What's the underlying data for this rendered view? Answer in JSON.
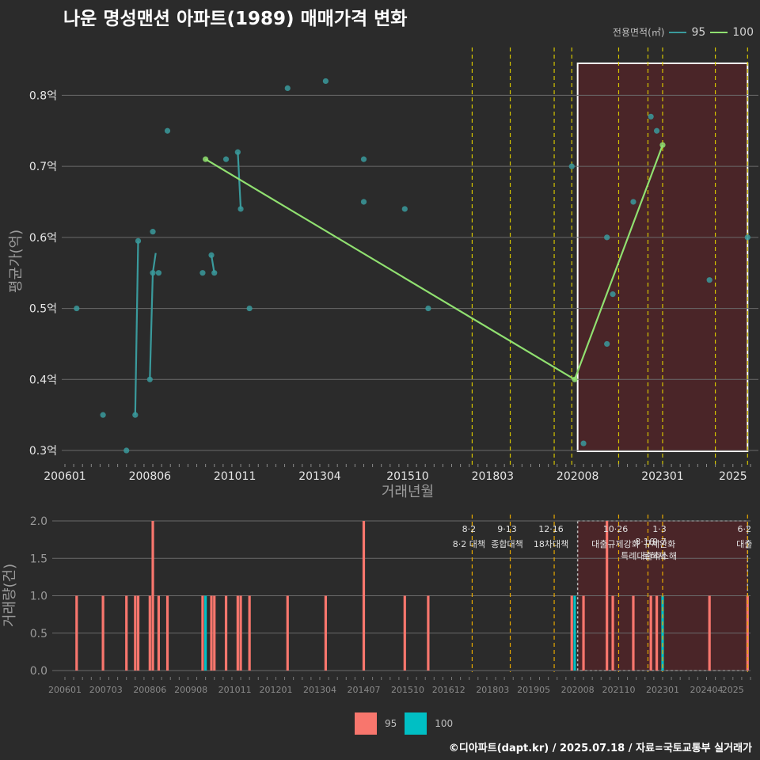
{
  "title": "나운 명성맨션 아파트(1989) 매매가격 변화",
  "legend": {
    "title": "전용면적(㎡)",
    "items": [
      {
        "name": "95",
        "color": "#3a9a9c"
      },
      {
        "name": "100",
        "color": "#90e070"
      }
    ]
  },
  "bottom_legend": [
    {
      "name": "95",
      "color": "#f8766d"
    },
    {
      "name": "100",
      "color": "#00bfc4"
    }
  ],
  "footer": "©디아파트(dapt.kr) / 2025.07.18 / 자료=국토교통부 실거래가",
  "chart_data": [
    {
      "type": "scatter",
      "title": "나운 명성맨션 아파트(1989) 매매가격 변화",
      "xlabel": "거래년월",
      "ylabel": "평균가(억)",
      "x_ticks": [
        "200601",
        "200806",
        "201011",
        "201304",
        "201510",
        "201803",
        "202008",
        "202301",
        "2025"
      ],
      "y_ticks": [
        "0.3억",
        "0.4억",
        "0.5억",
        "0.6억",
        "0.7억",
        "0.8억"
      ],
      "ylim": [
        0.29,
        0.845
      ],
      "grid": true,
      "legend_position": "top-right",
      "highlight_range": [
        "2020-08",
        "2025-06"
      ],
      "policy_lines": [
        "2017-08",
        "2018-09",
        "2019-12",
        "2020-06",
        "2021-10",
        "2022-08",
        "2023-01",
        "2024-07",
        "2025-06"
      ],
      "series": [
        {
          "name": "95",
          "color": "#3a9a9c",
          "points": [
            [
              "2006-05",
              0.5
            ],
            [
              "2007-02",
              0.35
            ],
            [
              "2007-10",
              0.3
            ],
            [
              "2008-01",
              0.35
            ],
            [
              "2008-02",
              0.595
            ],
            [
              "2008-06",
              0.4
            ],
            [
              "2008-07",
              0.608
            ],
            [
              "2008-07",
              0.55
            ],
            [
              "2008-09",
              0.55
            ],
            [
              "2008-12",
              0.75
            ],
            [
              "2009-12",
              0.55
            ],
            [
              "2010-03",
              0.575
            ],
            [
              "2010-04",
              0.55
            ],
            [
              "2010-08",
              0.71
            ],
            [
              "2010-12",
              0.72
            ],
            [
              "2011-01",
              0.64
            ],
            [
              "2011-04",
              0.5
            ],
            [
              "2012-05",
              0.81
            ],
            [
              "2013-06",
              0.82
            ],
            [
              "2014-07",
              0.71
            ],
            [
              "2014-07",
              0.65
            ],
            [
              "2015-09",
              0.64
            ],
            [
              "2016-05",
              0.5
            ],
            [
              "2020-06",
              0.7
            ],
            [
              "2020-10",
              0.31
            ],
            [
              "2021-06",
              0.45
            ],
            [
              "2021-06",
              0.6
            ],
            [
              "2021-08",
              0.52
            ],
            [
              "2022-03",
              0.65
            ],
            [
              "2022-09",
              0.77
            ],
            [
              "2022-11",
              0.75
            ],
            [
              "2024-05",
              0.54
            ],
            [
              "2025-06",
              0.6
            ]
          ],
          "lines": [
            [
              [
                "2008-01",
                0.35
              ],
              [
                "2008-02",
                0.595
              ]
            ],
            [
              [
                "2008-06",
                0.4
              ],
              [
                "2008-07",
                0.55
              ]
            ],
            [
              [
                "2008-07",
                0.55
              ],
              [
                "2008-08",
                0.578
              ]
            ],
            [
              [
                "2010-03",
                0.575
              ],
              [
                "2010-04",
                0.55
              ]
            ],
            [
              [
                "2010-12",
                0.72
              ],
              [
                "2011-01",
                0.64
              ]
            ]
          ]
        },
        {
          "name": "100",
          "color": "#90e070",
          "points": [
            [
              "2010-01",
              0.71
            ],
            [
              "2020-07",
              0.4
            ],
            [
              "2023-01",
              0.73
            ]
          ],
          "lines": [
            [
              [
                "2010-01",
                0.71
              ],
              [
                "2020-07",
                0.4
              ],
              [
                "2023-01",
                0.73
              ]
            ]
          ]
        }
      ]
    },
    {
      "type": "bar",
      "ylabel": "거래량(건)",
      "x_ticks": [
        "200601",
        "200703",
        "200806",
        "200908",
        "201011",
        "201201",
        "201304",
        "201407",
        "201510",
        "201612",
        "201803",
        "201905",
        "202008",
        "202110",
        "202301",
        "202404",
        "2025"
      ],
      "y_ticks": [
        "0.0",
        "0.5",
        "1.0",
        "1.5",
        "2.0"
      ],
      "ylim": [
        0,
        2.0
      ],
      "grid": true,
      "legend_position": "bottom",
      "highlight_range": [
        "2020-08",
        "2025-06"
      ],
      "series": [
        {
          "name": "95",
          "color": "#f8766d",
          "bars": [
            [
              "2006-05",
              1
            ],
            [
              "2007-02",
              1
            ],
            [
              "2007-10",
              1
            ],
            [
              "2008-01",
              1
            ],
            [
              "2008-02",
              1
            ],
            [
              "2008-06",
              1
            ],
            [
              "2008-07",
              2
            ],
            [
              "2008-09",
              1
            ],
            [
              "2008-12",
              1
            ],
            [
              "2009-12",
              1
            ],
            [
              "2010-03",
              1
            ],
            [
              "2010-04",
              1
            ],
            [
              "2010-08",
              1
            ],
            [
              "2010-12",
              1
            ],
            [
              "2011-01",
              1
            ],
            [
              "2011-04",
              1
            ],
            [
              "2012-05",
              1
            ],
            [
              "2013-06",
              1
            ],
            [
              "2014-07",
              2
            ],
            [
              "2015-09",
              1
            ],
            [
              "2016-05",
              1
            ],
            [
              "2020-06",
              1
            ],
            [
              "2020-10",
              1
            ],
            [
              "2021-06",
              2
            ],
            [
              "2021-08",
              1
            ],
            [
              "2022-03",
              1
            ],
            [
              "2022-09",
              1
            ],
            [
              "2022-11",
              1
            ],
            [
              "2024-05",
              1
            ],
            [
              "2025-06",
              1
            ]
          ]
        },
        {
          "name": "100",
          "color": "#00bfc4",
          "bars": [
            [
              "2010-01",
              1
            ],
            [
              "2020-07",
              1
            ],
            [
              "2023-01",
              1
            ]
          ]
        }
      ],
      "annotations": [
        {
          "date": "2017-08",
          "date_label": "8·2",
          "text": "8·2 대책",
          "line2": ""
        },
        {
          "date": "2018-09",
          "date_label": "9·13",
          "text": "종합대책",
          "line2": ""
        },
        {
          "date": "2019-12",
          "date_label": "12·16",
          "text": "18차대책",
          "line2": ""
        },
        {
          "date": "2021-10",
          "date_label": "10·26",
          "text": "대출규제강화",
          "line2": ""
        },
        {
          "date": "2023-01",
          "date_label": "1·3",
          "text": "규제완화",
          "line2": ""
        },
        {
          "date": "2022-08",
          "date_label": "8·16",
          "text": "",
          "line2": "특례대출축소"
        },
        {
          "date": "2023-01",
          "date_label": "9·7",
          "text": "",
          "line2": "토허제 해"
        },
        {
          "date": "2025-06",
          "date_label": "6·2",
          "text": "대출",
          "line2": ""
        }
      ]
    }
  ]
}
